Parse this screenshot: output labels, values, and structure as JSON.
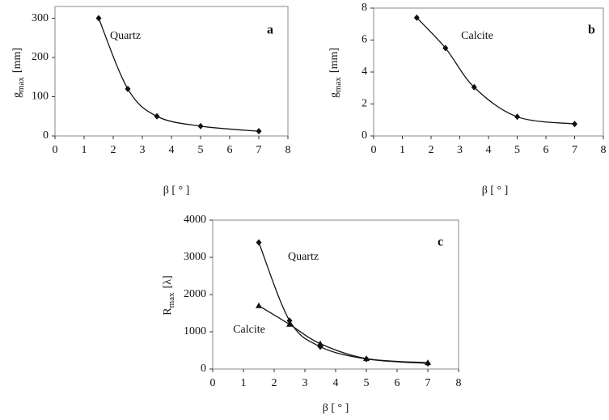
{
  "chart_data": [
    {
      "type": "scatter",
      "panel": "a",
      "xlabel": "β [ ° ]",
      "ylabel": {
        "symbol": "g",
        "subscript": "max",
        "unit": "[mm]"
      },
      "xlim": [
        0,
        8
      ],
      "xticks": [
        0,
        1,
        2,
        3,
        4,
        5,
        6,
        7,
        8
      ],
      "ylim": [
        0,
        330
      ],
      "yticks": [
        0,
        100,
        200,
        300
      ],
      "x": [
        1.5,
        2.5,
        3.5,
        5,
        7
      ],
      "series": [
        {
          "name": "Quartz",
          "color": "#111111",
          "marker": "diamond",
          "values": [
            300,
            120,
            50,
            25,
            12
          ]
        }
      ]
    },
    {
      "type": "scatter",
      "panel": "b",
      "xlabel": "β [ ° ]",
      "ylabel": {
        "symbol": "g",
        "subscript": "max",
        "unit": "[mm]"
      },
      "xlim": [
        0,
        8
      ],
      "xticks": [
        0,
        1,
        2,
        3,
        4,
        5,
        6,
        7,
        8
      ],
      "ylim": [
        0,
        8
      ],
      "yticks": [
        0,
        2,
        4,
        6,
        8
      ],
      "x": [
        1.5,
        2.5,
        3.5,
        5,
        7
      ],
      "series": [
        {
          "name": "Calcite",
          "color": "#111111",
          "marker": "diamond",
          "values": [
            7.4,
            5.5,
            3.05,
            1.2,
            0.75
          ]
        }
      ]
    },
    {
      "type": "scatter",
      "panel": "c",
      "xlabel": "β [ ° ]",
      "ylabel": {
        "symbol": "R",
        "subscript": "max",
        "unit": "[λ]"
      },
      "xlim": [
        0,
        8
      ],
      "xticks": [
        0,
        1,
        2,
        3,
        4,
        5,
        6,
        7,
        8
      ],
      "ylim": [
        0,
        4000
      ],
      "yticks": [
        0,
        1000,
        2000,
        3000,
        4000
      ],
      "x": [
        1.5,
        2.5,
        3.5,
        5,
        7
      ],
      "series": [
        {
          "name": "Quartz",
          "color": "#111111",
          "marker": "diamond",
          "values": [
            3400,
            1300,
            600,
            270,
            150
          ]
        },
        {
          "name": "Calcite",
          "color": "#111111",
          "marker": "triangle",
          "values": [
            1700,
            1200,
            680,
            280,
            170
          ]
        }
      ]
    }
  ]
}
